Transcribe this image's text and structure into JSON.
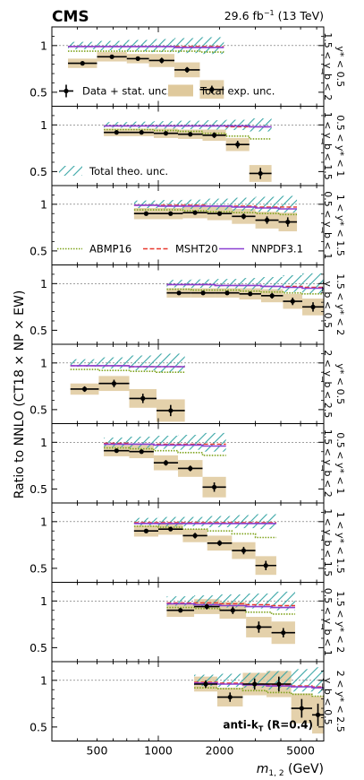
{
  "header": {
    "experiment": "CMS",
    "lumi": "29.6 fb",
    "lumi_sup": "−1",
    "energy": " (13 TeV)"
  },
  "ylabel": "Ratio to NNLO (CT18 × NP × EW)",
  "xlabel": "m",
  "xlabel_sub": "1, 2",
  "xlabel_unit": " (GeV)",
  "annotation": "anti-k",
  "annotation_sub": "T",
  "annotation_rest": " (R=0.4)",
  "legend": {
    "data": "Data + stat. unc.",
    "exp": "Total exp. unc.",
    "theo": "Total theo. unc.",
    "abmp": "ABMP16",
    "msht": "MSHT20",
    "nnpdf": "NNPDF3.1"
  },
  "colors": {
    "exp_band": "#dfc99c",
    "theo_band": "#3aa6a6",
    "abmp": "#7fa31d",
    "msht": "#e8382e",
    "nnpdf": "#8a3fd1",
    "data": "#000000"
  },
  "chart_data": {
    "type": "scatter",
    "x_scale": "log",
    "xlim": [
      300,
      6500
    ],
    "ylim": [
      0.35,
      1.2
    ],
    "x_ticks": [
      500,
      1000,
      2000,
      5000
    ],
    "y_ticks": [
      0.5,
      1.0
    ],
    "reference_line": 1.0,
    "panels": [
      {
        "label_top": "y* < 0.5",
        "label_bottom": "1.5 < y_b < 2",
        "bins": [
          [
            360,
            500
          ],
          [
            500,
            700
          ],
          [
            700,
            900
          ],
          [
            900,
            1200
          ],
          [
            1200,
            1600
          ],
          [
            1600,
            2100
          ]
        ],
        "data": [
          0.81,
          0.88,
          0.86,
          0.84,
          0.74,
          0.53
        ],
        "stat": [
          0.02,
          0.02,
          0.02,
          0.03,
          0.03,
          0.04
        ],
        "exp": [
          0.05,
          0.05,
          0.05,
          0.07,
          0.08,
          0.1
        ],
        "theo": [
          0.04,
          0.05,
          0.06,
          0.07,
          0.08,
          0.09
        ],
        "abmp": [
          0.94,
          0.94,
          0.94,
          0.94,
          0.94,
          0.93
        ],
        "msht": [
          0.99,
          0.99,
          0.99,
          0.99,
          0.99,
          0.99
        ],
        "nnpdf": [
          0.99,
          0.99,
          0.99,
          0.99,
          0.98,
          0.98
        ]
      },
      {
        "label_top": "0.5 < y* < 1",
        "label_bottom": "1 < y_b < 1.5",
        "bins": [
          [
            540,
            720
          ],
          [
            720,
            950
          ],
          [
            950,
            1250
          ],
          [
            1250,
            1650
          ],
          [
            1650,
            2150
          ],
          [
            2150,
            2800
          ],
          [
            2800,
            3600
          ]
        ],
        "data": [
          0.92,
          0.92,
          0.91,
          0.9,
          0.89,
          0.79,
          0.48
        ],
        "stat": [
          0.015,
          0.015,
          0.02,
          0.02,
          0.03,
          0.04,
          0.06
        ],
        "exp": [
          0.04,
          0.04,
          0.05,
          0.05,
          0.06,
          0.07,
          0.09
        ],
        "theo": [
          0.03,
          0.035,
          0.04,
          0.045,
          0.05,
          0.055,
          0.07
        ],
        "abmp": [
          0.95,
          0.95,
          0.94,
          0.93,
          0.91,
          0.88,
          0.85
        ],
        "msht": [
          0.99,
          0.99,
          0.99,
          0.99,
          0.99,
          0.98,
          0.98
        ],
        "nnpdf": [
          0.99,
          0.99,
          0.99,
          0.99,
          0.99,
          0.99,
          0.98
        ]
      },
      {
        "label_top": "1 < y* < 1.5",
        "label_bottom": "0.5 < y_b < 1",
        "bins": [
          [
            760,
            1000
          ],
          [
            1000,
            1320
          ],
          [
            1320,
            1740
          ],
          [
            1740,
            2300
          ],
          [
            2300,
            3000
          ],
          [
            3000,
            3900
          ],
          [
            3900,
            4800
          ]
        ],
        "data": [
          0.9,
          0.9,
          0.91,
          0.9,
          0.87,
          0.83,
          0.81
        ],
        "stat": [
          0.02,
          0.02,
          0.02,
          0.02,
          0.03,
          0.04,
          0.05
        ],
        "exp": [
          0.06,
          0.06,
          0.06,
          0.07,
          0.08,
          0.09,
          0.1
        ],
        "theo": [
          0.04,
          0.045,
          0.05,
          0.06,
          0.07,
          0.08,
          0.09
        ],
        "abmp": [
          0.94,
          0.94,
          0.93,
          0.92,
          0.91,
          0.9,
          0.89
        ],
        "msht": [
          0.99,
          0.99,
          0.99,
          0.98,
          0.98,
          0.97,
          0.97
        ],
        "nnpdf": [
          0.99,
          0.98,
          0.98,
          0.98,
          0.97,
          0.96,
          0.95
        ]
      },
      {
        "label_top": "1.5 < y* < 2",
        "label_bottom": "y_b < 0.5",
        "bins": [
          [
            1100,
            1450
          ],
          [
            1450,
            1900
          ],
          [
            1900,
            2500
          ],
          [
            2500,
            3200
          ],
          [
            3200,
            4100
          ],
          [
            4100,
            5100
          ],
          [
            5100,
            6500
          ]
        ],
        "data": [
          0.9,
          0.9,
          0.9,
          0.89,
          0.87,
          0.81,
          0.75
        ],
        "stat": [
          0.02,
          0.02,
          0.02,
          0.02,
          0.03,
          0.04,
          0.05
        ],
        "exp": [
          0.05,
          0.05,
          0.05,
          0.06,
          0.07,
          0.08,
          0.09
        ],
        "theo": [
          0.04,
          0.045,
          0.05,
          0.06,
          0.07,
          0.09,
          0.11
        ],
        "abmp": [
          0.94,
          0.93,
          0.93,
          0.92,
          0.91,
          0.9,
          0.89
        ],
        "msht": [
          0.99,
          0.99,
          0.98,
          0.98,
          0.97,
          0.97,
          0.96
        ],
        "nnpdf": [
          0.99,
          0.99,
          0.98,
          0.98,
          0.97,
          0.96,
          0.95
        ]
      },
      {
        "label_top": "y* < 0.5",
        "label_bottom": "2 < y_b < 2.5",
        "bins": [
          [
            370,
            510
          ],
          [
            510,
            720
          ],
          [
            720,
            980
          ],
          [
            980,
            1350
          ]
        ],
        "data": [
          0.72,
          0.78,
          0.62,
          0.49
        ],
        "stat": [
          0.03,
          0.04,
          0.05,
          0.06
        ],
        "exp": [
          0.06,
          0.08,
          0.1,
          0.12
        ],
        "theo": [
          0.04,
          0.06,
          0.08,
          0.1
        ],
        "abmp": [
          0.93,
          0.92,
          0.91,
          0.9
        ],
        "msht": [
          0.97,
          0.97,
          0.96,
          0.96
        ],
        "nnpdf": [
          0.97,
          0.97,
          0.96,
          0.96
        ]
      },
      {
        "label_top": "0.5 < y* < 1",
        "label_bottom": "1.5 < y_b < 2",
        "bins": [
          [
            540,
            720
          ],
          [
            720,
            950
          ],
          [
            950,
            1250
          ],
          [
            1250,
            1650
          ],
          [
            1650,
            2150
          ]
        ],
        "data": [
          0.91,
          0.9,
          0.78,
          0.72,
          0.52
        ],
        "stat": [
          0.02,
          0.02,
          0.03,
          0.03,
          0.05
        ],
        "exp": [
          0.06,
          0.07,
          0.08,
          0.09,
          0.11
        ],
        "theo": [
          0.05,
          0.06,
          0.07,
          0.08,
          0.1
        ],
        "abmp": [
          0.94,
          0.93,
          0.91,
          0.89,
          0.86
        ],
        "msht": [
          0.99,
          0.98,
          0.98,
          0.98,
          0.98
        ],
        "nnpdf": [
          0.98,
          0.98,
          0.97,
          0.97,
          0.96
        ]
      },
      {
        "label_top": "1 < y* < 1.5",
        "label_bottom": "1 < y_b < 1.5",
        "bins": [
          [
            760,
            1000
          ],
          [
            1000,
            1320
          ],
          [
            1320,
            1740
          ],
          [
            1740,
            2300
          ],
          [
            2300,
            3000
          ],
          [
            3000,
            3800
          ]
        ],
        "data": [
          0.9,
          0.92,
          0.85,
          0.77,
          0.69,
          0.53
        ],
        "stat": [
          0.02,
          0.02,
          0.03,
          0.03,
          0.04,
          0.05
        ],
        "exp": [
          0.06,
          0.06,
          0.07,
          0.08,
          0.09,
          0.1
        ],
        "theo": [
          0.04,
          0.05,
          0.05,
          0.06,
          0.07,
          0.08
        ],
        "abmp": [
          0.95,
          0.94,
          0.92,
          0.9,
          0.87,
          0.83
        ],
        "msht": [
          0.99,
          0.99,
          0.99,
          0.99,
          0.99,
          0.99
        ],
        "nnpdf": [
          0.98,
          0.98,
          0.98,
          0.98,
          0.98,
          0.98
        ]
      },
      {
        "label_top": "1.5 < y* < 2",
        "label_bottom": "0.5 < y_b < 1",
        "bins": [
          [
            1100,
            1500
          ],
          [
            1500,
            2000
          ],
          [
            2000,
            2700
          ],
          [
            2700,
            3600
          ],
          [
            3600,
            4700
          ]
        ],
        "data": [
          0.9,
          0.94,
          0.9,
          0.72,
          0.66
        ],
        "stat": [
          0.02,
          0.03,
          0.04,
          0.06,
          0.05
        ],
        "exp": [
          0.07,
          0.08,
          0.09,
          0.11,
          0.12
        ],
        "theo": [
          0.05,
          0.06,
          0.07,
          0.08,
          0.1
        ],
        "abmp": [
          0.93,
          0.92,
          0.9,
          0.88,
          0.86
        ],
        "msht": [
          0.98,
          0.98,
          0.97,
          0.96,
          0.95
        ],
        "nnpdf": [
          0.97,
          0.96,
          0.95,
          0.94,
          0.93
        ]
      },
      {
        "label_top": "2 < y* < 2.5",
        "label_bottom": "y_b < 0.5",
        "bins": [
          [
            1500,
            1950
          ],
          [
            1950,
            2600
          ],
          [
            2600,
            3400
          ],
          [
            3400,
            4500
          ],
          [
            4500,
            5700
          ],
          [
            5700,
            6500
          ]
        ],
        "data": [
          0.96,
          0.82,
          0.96,
          0.96,
          0.7,
          0.63
        ],
        "stat": [
          0.04,
          0.05,
          0.06,
          0.08,
          0.1,
          0.12
        ],
        "exp": [
          0.08,
          0.1,
          0.12,
          0.14,
          0.16,
          0.2
        ],
        "theo": [
          0.06,
          0.07,
          0.08,
          0.1,
          0.12,
          0.14
        ],
        "abmp": [
          0.92,
          0.91,
          0.89,
          0.87,
          0.85,
          0.83
        ],
        "msht": [
          0.98,
          0.97,
          0.96,
          0.95,
          0.94,
          0.93
        ],
        "nnpdf": [
          0.97,
          0.96,
          0.95,
          0.94,
          0.93,
          0.92
        ]
      }
    ]
  }
}
